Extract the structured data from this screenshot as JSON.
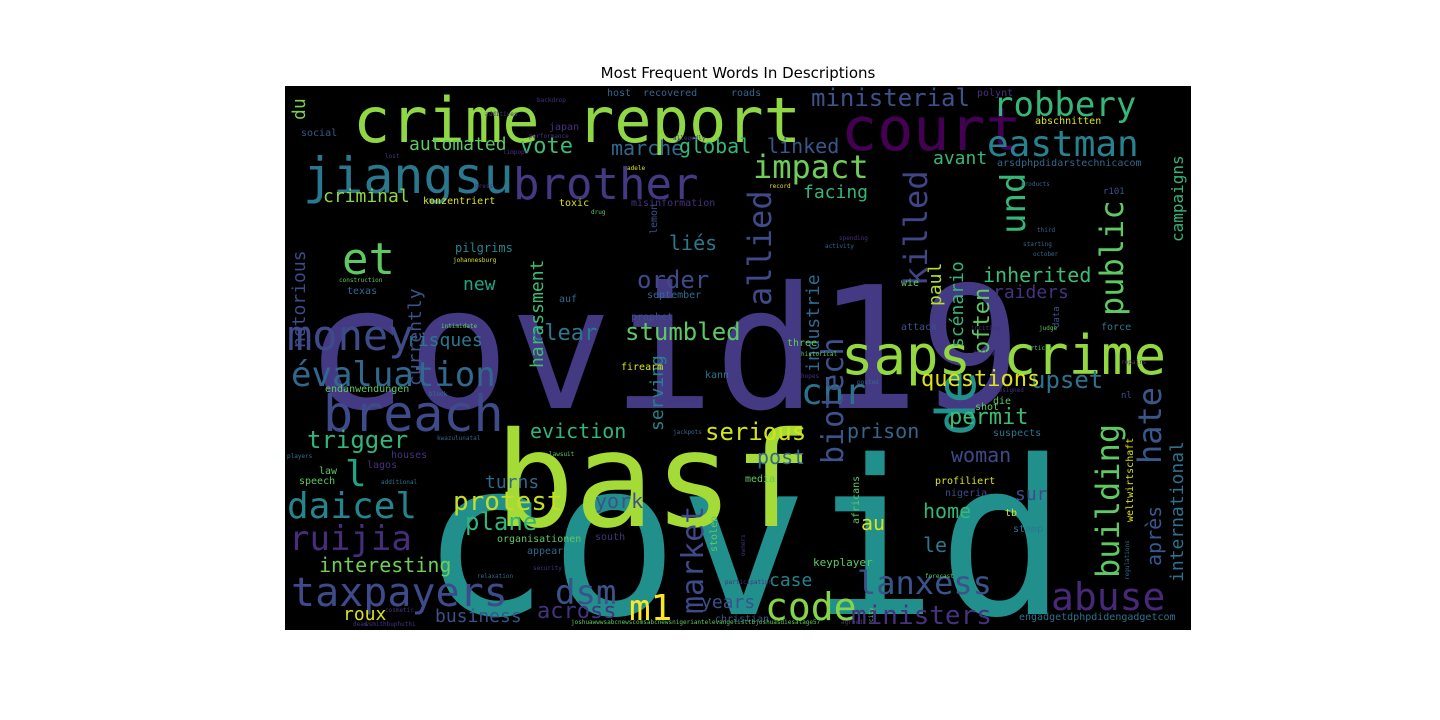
{
  "chart_data": {
    "type": "wordcloud",
    "title": "Most Frequent Words In Descriptions",
    "background": "#000000",
    "colormap": "viridis",
    "words": [
      {
        "text": "covid",
        "weight": 1.0,
        "color": "#21908d"
      },
      {
        "text": "covid19",
        "weight": 0.95,
        "color": "#443983"
      },
      {
        "text": "basf",
        "weight": 0.82,
        "color": "#a5db36"
      },
      {
        "text": "crime report",
        "weight": 0.5,
        "color": "#8fd744"
      },
      {
        "text": "court",
        "weight": 0.45,
        "color": "#440154"
      },
      {
        "text": "saps crime",
        "weight": 0.44,
        "color": "#93d741"
      },
      {
        "text": "de",
        "weight": 0.44,
        "color": "#21918c"
      },
      {
        "text": "jiangsu",
        "weight": 0.4,
        "color": "#2a788e"
      },
      {
        "text": "breach",
        "weight": 0.4,
        "color": "#3e4a89"
      },
      {
        "text": "brother",
        "weight": 0.35,
        "color": "#443983"
      },
      {
        "text": "money",
        "weight": 0.34,
        "color": "#3e4a89"
      },
      {
        "text": "et",
        "weight": 0.36,
        "color": "#5ec962"
      },
      {
        "text": "évaluation",
        "weight": 0.3,
        "color": "#31688e"
      },
      {
        "text": "eastman",
        "weight": 0.3,
        "color": "#26828e"
      },
      {
        "text": "robbery",
        "weight": 0.28,
        "color": "#35b779"
      },
      {
        "text": "allied",
        "weight": 0.28,
        "color": "#3e4a89"
      },
      {
        "text": "killed",
        "weight": 0.28,
        "color": "#414487"
      },
      {
        "text": "impact",
        "weight": 0.26,
        "color": "#6ece58"
      },
      {
        "text": "chr",
        "weight": 0.28,
        "color": "#2c728e"
      },
      {
        "text": "public",
        "weight": 0.3,
        "color": "#5ec962"
      },
      {
        "text": "und",
        "weight": 0.3,
        "color": "#35b779"
      },
      {
        "text": "biotech",
        "weight": 0.29,
        "color": "#3b528b"
      },
      {
        "text": "building",
        "weight": 0.29,
        "color": "#5ec962"
      },
      {
        "text": "hate",
        "weight": 0.29,
        "color": "#38588c"
      },
      {
        "text": "market",
        "weight": 0.29,
        "color": "#3e4a89"
      },
      {
        "text": "taxpayers",
        "weight": 0.33,
        "color": "#3e4a89"
      },
      {
        "text": "abuse",
        "weight": 0.33,
        "color": "#482878"
      },
      {
        "text": "code",
        "weight": 0.3,
        "color": "#86d549"
      },
      {
        "text": "m1",
        "weight": 0.32,
        "color": "#fde725"
      },
      {
        "text": "dsm",
        "weight": 0.3,
        "color": "#3b528b"
      },
      {
        "text": "daicel",
        "weight": 0.3,
        "color": "#25858e"
      },
      {
        "text": "ruijia",
        "weight": 0.28,
        "color": "#472d7b"
      },
      {
        "text": "lanxess",
        "weight": 0.26,
        "color": "#3b528b"
      },
      {
        "text": "ministers",
        "weight": 0.22,
        "color": "#46327e"
      },
      {
        "text": "protest",
        "weight": 0.22,
        "color": "#c2df23"
      },
      {
        "text": "plane",
        "weight": 0.2,
        "color": "#31b57b"
      },
      {
        "text": "upset",
        "weight": 0.2,
        "color": "#2c728e"
      },
      {
        "text": "questions",
        "weight": 0.18,
        "color": "#dde318"
      },
      {
        "text": "ministerial",
        "weight": 0.2,
        "color": "#3b528b"
      },
      {
        "text": "trigger",
        "weight": 0.18,
        "color": "#31b57b"
      },
      {
        "text": "across",
        "weight": 0.18,
        "color": "#46327e"
      },
      {
        "text": "serious",
        "weight": 0.18,
        "color": "#d2e21b"
      },
      {
        "text": "stumbled",
        "weight": 0.18,
        "color": "#5ec962"
      },
      {
        "text": "order",
        "weight": 0.17,
        "color": "#3e4a89"
      },
      {
        "text": "clear",
        "weight": 0.17,
        "color": "#2a788e"
      },
      {
        "text": "permit",
        "weight": 0.17,
        "color": "#3dbc74"
      },
      {
        "text": "inherited",
        "weight": 0.16,
        "color": "#3dbc74"
      },
      {
        "text": "vote",
        "weight": 0.16,
        "color": "#3dbc74"
      },
      {
        "text": "marché",
        "weight": 0.15,
        "color": "#31688e"
      },
      {
        "text": "global",
        "weight": 0.15,
        "color": "#35b779"
      },
      {
        "text": "linked",
        "weight": 0.15,
        "color": "#38588c"
      },
      {
        "text": "prison",
        "weight": 0.15,
        "color": "#31688e"
      },
      {
        "text": "woman",
        "weight": 0.15,
        "color": "#3e4a89"
      },
      {
        "text": "post",
        "weight": 0.14,
        "color": "#31688e"
      },
      {
        "text": "eviction",
        "weight": 0.14,
        "color": "#31b57b"
      },
      {
        "text": "interesting",
        "weight": 0.14,
        "color": "#6ece58"
      },
      {
        "text": "raiders",
        "weight": 0.14,
        "color": "#46327e"
      },
      {
        "text": "york",
        "weight": 0.14,
        "color": "#3b528b"
      },
      {
        "text": "turns",
        "weight": 0.14,
        "color": "#31688e"
      },
      {
        "text": "risques",
        "weight": 0.13,
        "color": "#2a788e"
      },
      {
        "text": "new",
        "weight": 0.13,
        "color": "#20a486"
      },
      {
        "text": "criminal",
        "weight": 0.13,
        "color": "#8fd744"
      },
      {
        "text": "automated",
        "weight": 0.13,
        "color": "#5ec962"
      },
      {
        "text": "facing",
        "weight": 0.13,
        "color": "#35b779"
      },
      {
        "text": "avant",
        "weight": 0.12,
        "color": "#35b779"
      },
      {
        "text": "home",
        "weight": 0.13,
        "color": "#35b779"
      },
      {
        "text": "sur",
        "weight": 0.13,
        "color": "#3e4a89"
      },
      {
        "text": "business",
        "weight": 0.13,
        "color": "#3b528b"
      },
      {
        "text": "years",
        "weight": 0.13,
        "color": "#3b528b"
      },
      {
        "text": "case",
        "weight": 0.12,
        "color": "#26828e"
      },
      {
        "text": "roux",
        "weight": 0.13,
        "color": "#dde318"
      },
      {
        "text": "au",
        "weight": 0.12,
        "color": "#dde318"
      },
      {
        "text": "le",
        "weight": 0.13,
        "color": "#2a788e"
      },
      {
        "text": "liés",
        "weight": 0.13,
        "color": "#2a788e"
      },
      {
        "text": "harassment",
        "weight": 0.12,
        "color": "#3dbc74"
      },
      {
        "text": "industrie",
        "weight": 0.12,
        "color": "#31688e"
      },
      {
        "text": "currently",
        "weight": 0.13,
        "color": "#3b528b"
      },
      {
        "text": "serving",
        "weight": 0.12,
        "color": "#26828e"
      },
      {
        "text": "scénario",
        "weight": 0.12,
        "color": "#35b779"
      },
      {
        "text": "paul",
        "weight": 0.12,
        "color": "#b5de2b"
      },
      {
        "text": "often",
        "weight": 0.13,
        "color": "#5ec962"
      },
      {
        "text": "après",
        "weight": 0.12,
        "color": "#38588c"
      },
      {
        "text": "international",
        "weight": 0.12,
        "color": "#2c728e"
      },
      {
        "text": "campaigns",
        "weight": 0.11,
        "color": "#35b779"
      },
      {
        "text": "notorious",
        "weight": 0.12,
        "color": "#3e4a89"
      },
      {
        "text": "du",
        "weight": 0.1,
        "color": "#7ad151"
      },
      {
        "text": "l",
        "weight": 0.2,
        "color": "#20a486"
      },
      {
        "text": "keyplayer",
        "weight": 0.07,
        "color": "#5ec962"
      },
      {
        "text": "engadgetdphpdidengadgetcom",
        "weight": 0.06,
        "color": "#2c728e"
      },
      {
        "text": "arsdphpdidarstechnicacom",
        "weight": 0.06,
        "color": "#31688e"
      },
      {
        "text": "endanwendungen",
        "weight": 0.06,
        "color": "#5ec962"
      },
      {
        "text": "organisationen",
        "weight": 0.06,
        "color": "#5ec962"
      },
      {
        "text": "misinformation",
        "weight": 0.06,
        "color": "#46327e"
      },
      {
        "text": "konzentriert",
        "weight": 0.06,
        "color": "#dde318"
      },
      {
        "text": "abschnitten",
        "weight": 0.06,
        "color": "#dde318"
      },
      {
        "text": "profiliert",
        "weight": 0.06,
        "color": "#dde318"
      },
      {
        "text": "pilgrims",
        "weight": 0.07,
        "color": "#25858e"
      },
      {
        "text": "september",
        "weight": 0.06,
        "color": "#31688e"
      },
      {
        "text": "prophet",
        "weight": 0.06,
        "color": "#3b528b"
      },
      {
        "text": "firearm",
        "weight": 0.06,
        "color": "#dde318"
      },
      {
        "text": "suspects",
        "weight": 0.06,
        "color": "#2a788e"
      },
      {
        "text": "nigeria",
        "weight": 0.06,
        "color": "#3e4a89"
      },
      {
        "text": "toxic",
        "weight": 0.06,
        "color": "#dde318"
      },
      {
        "text": "lemon",
        "weight": 0.06,
        "color": "#3b528b"
      },
      {
        "text": "social",
        "weight": 0.06,
        "color": "#38588c"
      },
      {
        "text": "japan",
        "weight": 0.06,
        "color": "#46327e"
      },
      {
        "text": "host",
        "weight": 0.06,
        "color": "#31688e"
      },
      {
        "text": "recovered",
        "weight": 0.06,
        "color": "#31688e"
      },
      {
        "text": "roads",
        "weight": 0.06,
        "color": "#31688e"
      },
      {
        "text": "polynt",
        "weight": 0.05,
        "color": "#46327e"
      },
      {
        "text": "attack",
        "weight": 0.06,
        "color": "#3b528b"
      },
      {
        "text": "three",
        "weight": 0.06,
        "color": "#5ec962"
      },
      {
        "text": "force",
        "weight": 0.06,
        "color": "#2a788e"
      },
      {
        "text": "kann",
        "weight": 0.06,
        "color": "#2a788e"
      },
      {
        "text": "media",
        "weight": 0.06,
        "color": "#5ec962"
      },
      {
        "text": "south",
        "weight": 0.06,
        "color": "#46327e"
      },
      {
        "text": "appear",
        "weight": 0.06,
        "color": "#31688e"
      },
      {
        "text": "christian",
        "weight": 0.06,
        "color": "#3b528b"
      },
      {
        "text": "stamp",
        "weight": 0.05,
        "color": "#2a788e"
      },
      {
        "text": "shot",
        "weight": 0.05,
        "color": "#5ec962"
      },
      {
        "text": "die",
        "weight": 0.05,
        "color": "#5ec962"
      },
      {
        "text": "wie",
        "weight": 0.05,
        "color": "#5ec962"
      },
      {
        "text": "auf",
        "weight": 0.06,
        "color": "#31688e"
      },
      {
        "text": "texas",
        "weight": 0.05,
        "color": "#31688e"
      },
      {
        "text": "lagos",
        "weight": 0.05,
        "color": "#46327e"
      },
      {
        "text": "houses",
        "weight": 0.05,
        "color": "#46327e"
      },
      {
        "text": "law",
        "weight": 0.06,
        "color": "#5ec962"
      },
      {
        "text": "speech",
        "weight": 0.06,
        "color": "#5ec962"
      },
      {
        "text": "africans",
        "weight": 0.05,
        "color": "#5ec962"
      },
      {
        "text": "stolen",
        "weight": 0.05,
        "color": "#5ec962"
      },
      {
        "text": "tb",
        "weight": 0.05,
        "color": "#dde318"
      },
      {
        "text": "weltwirtschaft",
        "weight": 0.05,
        "color": "#dde318"
      },
      {
        "text": "r101",
        "weight": 0.05,
        "color": "#3b528b"
      },
      {
        "text": "data",
        "weight": 0.04,
        "color": "#3b528b"
      },
      {
        "text": "nl",
        "weight": 0.04,
        "color": "#3b528b"
      },
      {
        "text": "joshuawwwsabcnewscomsabcnewsnigeriantelevangelisttbjoshuasdiesatage57",
        "weight": 0.03,
        "color": "#5ec962"
      },
      {
        "text": "backdrop",
        "weight": 0.03,
        "color": "#46327e"
      },
      {
        "text": "additives",
        "weight": 0.03,
        "color": "#46327e"
      },
      {
        "text": "performance",
        "weight": 0.03,
        "color": "#46327e"
      },
      {
        "text": "lost",
        "weight": 0.03,
        "color": "#46327e"
      },
      {
        "text": "limpopo",
        "weight": 0.03,
        "color": "#46327e"
      },
      {
        "text": "press",
        "weight": 0.03,
        "color": "#46327e"
      },
      {
        "text": "allegedly",
        "weight": 0.03,
        "color": "#46327e"
      },
      {
        "text": "adele",
        "weight": 0.03,
        "color": "#dde318"
      },
      {
        "text": "record",
        "weight": 0.03,
        "color": "#dde318"
      },
      {
        "text": "drug",
        "weight": 0.03,
        "color": "#5ec962"
      },
      {
        "text": "johannesburg",
        "weight": 0.03,
        "color": "#dde318"
      },
      {
        "text": "construction",
        "weight": 0.03,
        "color": "#5ec962"
      },
      {
        "text": "intimidate",
        "weight": 0.03,
        "color": "#5ec962"
      },
      {
        "text": "block",
        "weight": 0.03,
        "color": "#2a788e"
      },
      {
        "text": "kwazulunatal",
        "weight": 0.03,
        "color": "#31688e"
      },
      {
        "text": "players",
        "weight": 0.03,
        "color": "#2a788e"
      },
      {
        "text": "additional",
        "weight": 0.03,
        "color": "#2a788e"
      },
      {
        "text": "lawsuit",
        "weight": 0.03,
        "color": "#5ec962"
      },
      {
        "text": "violence",
        "weight": 0.03,
        "color": "#46327e"
      },
      {
        "text": "jackpots",
        "weight": 0.03,
        "color": "#31688e"
      },
      {
        "text": "products",
        "weight": 0.03,
        "color": "#31688e"
      },
      {
        "text": "third",
        "weight": 0.03,
        "color": "#31688e"
      },
      {
        "text": "starting",
        "weight": 0.03,
        "color": "#31688e"
      },
      {
        "text": "october",
        "weight": 0.03,
        "color": "#31688e"
      },
      {
        "text": "activity",
        "weight": 0.03,
        "color": "#31688e"
      },
      {
        "text": "judge",
        "weight": 0.03,
        "color": "#5ec962"
      },
      {
        "text": "inciting",
        "weight": 0.03,
        "color": "#46327e"
      },
      {
        "text": "article",
        "weight": 0.03,
        "color": "#5ec962"
      },
      {
        "text": "repairs",
        "weight": 0.03,
        "color": "#46327e"
      },
      {
        "text": "historical",
        "weight": 0.03,
        "color": "#5ec962"
      },
      {
        "text": "acting",
        "weight": 0.03,
        "color": "#46327e"
      },
      {
        "text": "hopes",
        "weight": 0.03,
        "color": "#46327e"
      },
      {
        "text": "posted",
        "weight": 0.03,
        "color": "#31688e"
      },
      {
        "text": "designed",
        "weight": 0.03,
        "color": "#46327e"
      },
      {
        "text": "forecast",
        "weight": 0.03,
        "color": "#5ec962"
      },
      {
        "text": "participation",
        "weight": 0.03,
        "color": "#46327e"
      },
      {
        "text": "relaxation",
        "weight": 0.03,
        "color": "#31688e"
      },
      {
        "text": "security",
        "weight": 0.03,
        "color": "#46327e"
      },
      {
        "text": "cosmetic",
        "weight": 0.03,
        "color": "#46327e"
      },
      {
        "text": "dead",
        "weight": 0.03,
        "color": "#46327e"
      },
      {
        "text": "wsmithbuphuthi",
        "weight": 0.03,
        "color": "#46327e"
      },
      {
        "text": "city",
        "weight": 0.03,
        "color": "#5ec962"
      },
      {
        "text": "agreed",
        "weight": 0.03,
        "color": "#46327e"
      },
      {
        "text": "owners",
        "weight": 0.03,
        "color": "#46327e"
      },
      {
        "text": "regulations",
        "weight": 0.03,
        "color": "#31688e"
      },
      {
        "text": "spending",
        "weight": 0.03,
        "color": "#46327e"
      }
    ]
  }
}
